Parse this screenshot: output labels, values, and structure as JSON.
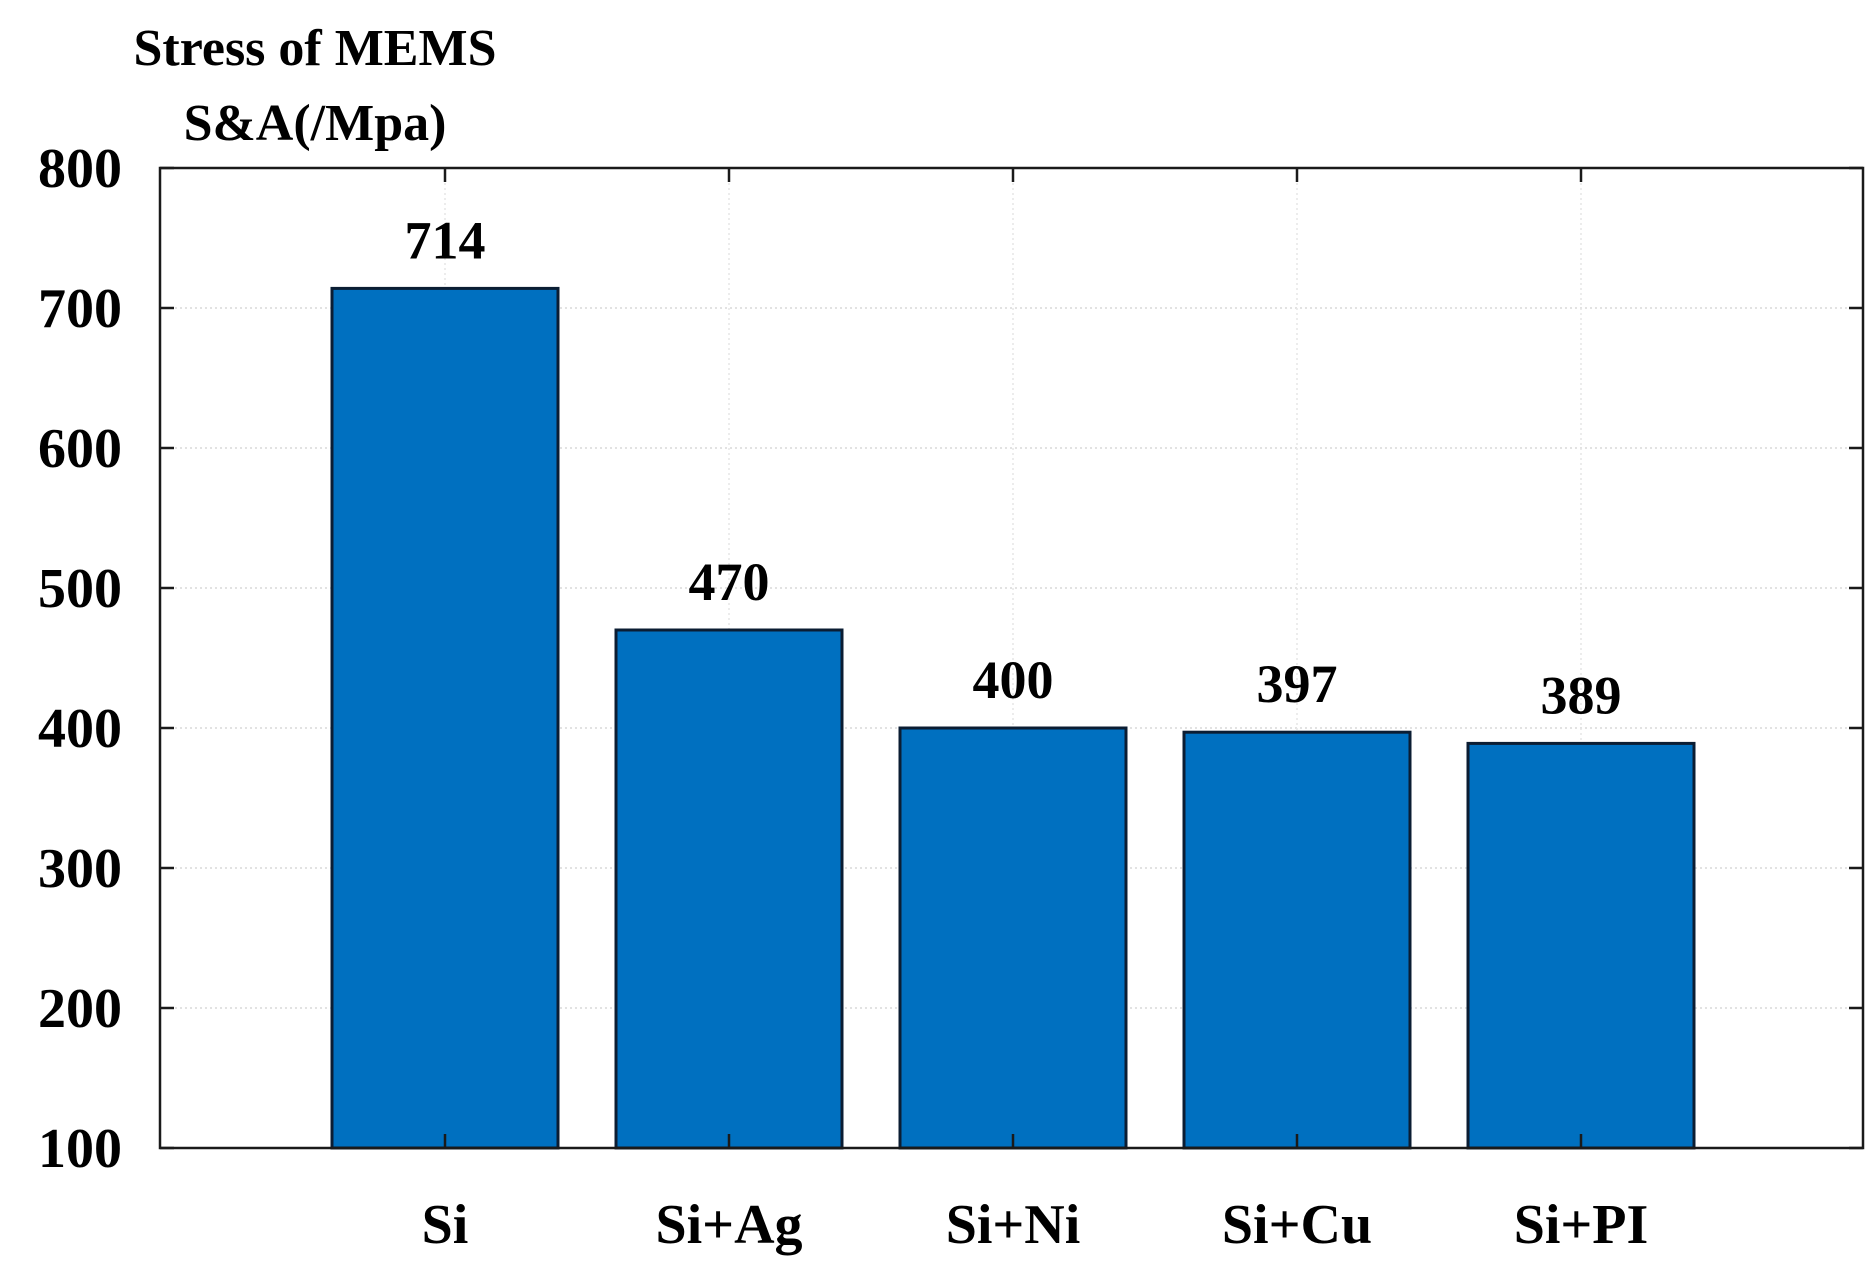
{
  "chart_data": {
    "type": "bar",
    "ylabel_lines": [
      "Stress of MEMS",
      "S&A(/Mpa)"
    ],
    "categories": [
      "Si",
      "Si+Ag",
      "Si+Ni",
      "Si+Cu",
      "Si+PI"
    ],
    "values": [
      714,
      470,
      400,
      397,
      389
    ],
    "data_labels": [
      "714",
      "470",
      "400",
      "397",
      "389"
    ],
    "ylim": [
      100,
      800
    ],
    "yticks": [
      100,
      200,
      300,
      400,
      500,
      600,
      700,
      800
    ],
    "grid": true,
    "bar_color": "#0070c0",
    "bar_edge_color": "#0b1d33"
  }
}
